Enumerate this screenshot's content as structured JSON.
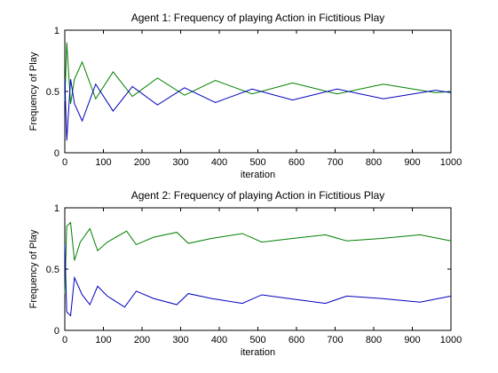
{
  "chart_data": [
    {
      "type": "line",
      "title": "Agent 1: Frequency of playing Action in Fictitious Play",
      "xlabel": "iteration",
      "ylabel": "Frequency of Play",
      "xlim": [
        0,
        1000
      ],
      "ylim": [
        0,
        1
      ],
      "xticks": [
        0,
        100,
        200,
        300,
        400,
        500,
        600,
        700,
        800,
        900,
        1000
      ],
      "yticks": [
        0,
        0.5,
        1
      ],
      "ytick_labels": [
        "0",
        "0.5",
        "1"
      ],
      "grid": false,
      "series": [
        {
          "color": "#008000",
          "x": [
            0,
            5,
            15,
            25,
            45,
            80,
            125,
            175,
            240,
            310,
            390,
            485,
            590,
            705,
            825,
            960,
            1000
          ],
          "y": [
            0.42,
            0.9,
            0.4,
            0.6,
            0.74,
            0.44,
            0.66,
            0.46,
            0.61,
            0.47,
            0.59,
            0.48,
            0.57,
            0.48,
            0.56,
            0.49,
            0.5
          ]
        },
        {
          "color": "#0000c0",
          "x": [
            0,
            5,
            15,
            25,
            45,
            80,
            125,
            175,
            240,
            310,
            390,
            485,
            590,
            705,
            825,
            960,
            1000
          ],
          "y": [
            0.6,
            0.1,
            0.6,
            0.4,
            0.26,
            0.56,
            0.34,
            0.54,
            0.39,
            0.53,
            0.41,
            0.52,
            0.43,
            0.52,
            0.44,
            0.51,
            0.49
          ]
        }
      ]
    },
    {
      "type": "line",
      "title": "Agent 2: Frequency of playing Action in Fictitious Play",
      "xlabel": "iteration",
      "ylabel": "Frequency of Play",
      "xlim": [
        0,
        1000
      ],
      "ylim": [
        0,
        1
      ],
      "xticks": [
        0,
        100,
        200,
        300,
        400,
        500,
        600,
        700,
        800,
        900,
        1000
      ],
      "yticks": [
        0,
        0.5,
        1
      ],
      "ytick_labels": [
        "0",
        "0.5",
        "1"
      ],
      "grid": false,
      "series": [
        {
          "color": "#008000",
          "x": [
            0,
            5,
            15,
            25,
            40,
            65,
            85,
            110,
            160,
            185,
            230,
            290,
            320,
            380,
            460,
            510,
            590,
            675,
            730,
            820,
            920,
            1000
          ],
          "y": [
            0.3,
            0.85,
            0.88,
            0.57,
            0.72,
            0.83,
            0.65,
            0.72,
            0.81,
            0.7,
            0.76,
            0.8,
            0.71,
            0.75,
            0.79,
            0.72,
            0.75,
            0.78,
            0.73,
            0.75,
            0.78,
            0.73
          ]
        },
        {
          "color": "#0000c0",
          "x": [
            0,
            5,
            15,
            25,
            45,
            65,
            85,
            110,
            155,
            185,
            230,
            290,
            320,
            380,
            460,
            510,
            580,
            675,
            730,
            820,
            920,
            1000
          ],
          "y": [
            0.7,
            0.15,
            0.12,
            0.43,
            0.29,
            0.21,
            0.36,
            0.28,
            0.19,
            0.32,
            0.26,
            0.21,
            0.3,
            0.26,
            0.22,
            0.29,
            0.26,
            0.22,
            0.28,
            0.26,
            0.23,
            0.28
          ]
        }
      ]
    }
  ]
}
